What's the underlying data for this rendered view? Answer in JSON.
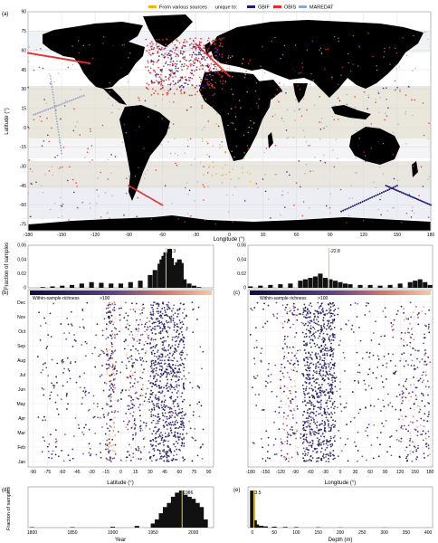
{
  "legend": {
    "various_label": "From various sources",
    "unique_label": "unique to:",
    "gbif_label": "GBIF",
    "obis_label": "OBIS",
    "maredat_label": "MAREDAT",
    "colors": {
      "various": "#f2b21a",
      "gbif": "#1c1c7a",
      "obis": "#e03030",
      "maredat": "#9aa6c8"
    }
  },
  "panel_labels": {
    "a": "(a)",
    "b": "(b)",
    "c": "(c)",
    "d": "(d)",
    "e": "(e)"
  },
  "richness": {
    "label": "Within-sample richness",
    "max_label": ">100"
  },
  "months": [
    "Jan",
    "Feb",
    "Mar",
    "Apr",
    "May",
    "Jun",
    "Jul",
    "Aug",
    "Sep",
    "Oct",
    "Nov",
    "Dec"
  ],
  "chart_data": [
    {
      "id": "a",
      "type": "scatter",
      "title": "",
      "xlabel": "Longitude (°)",
      "ylabel": "Latitude (°)",
      "xlim": [
        -180,
        180
      ],
      "ylim": [
        -80,
        90
      ],
      "xticks": [
        -180,
        -150,
        -120,
        -90,
        -60,
        -30,
        0,
        30,
        60,
        90,
        120,
        150,
        180
      ],
      "yticks": [
        -75,
        -60,
        -45,
        -30,
        -15,
        0,
        15,
        30,
        45,
        60,
        75,
        90
      ],
      "series": [
        {
          "name": "From various sources",
          "color": "#f2b21a"
        },
        {
          "name": "GBIF",
          "color": "#1c1c7a"
        },
        {
          "name": "OBIS",
          "color": "#e03030"
        },
        {
          "name": "MAREDAT",
          "color": "#9aa6c8"
        }
      ],
      "legend_position": "top"
    },
    {
      "id": "b_hist",
      "type": "bar",
      "ylabel": "Fraction of samples",
      "xlim": [
        -95,
        95
      ],
      "ylim": [
        0,
        0.06
      ],
      "yticks": [
        "0",
        "0.02",
        "0.04",
        "0.06"
      ],
      "median": 46.3,
      "median_label": "46.3",
      "x": [
        -80,
        -70,
        -60,
        -50,
        -40,
        -30,
        -20,
        -10,
        0,
        10,
        20,
        30,
        35,
        40,
        42,
        44,
        46,
        48,
        50,
        52,
        54,
        56,
        58,
        60,
        62,
        65,
        70,
        75,
        80
      ],
      "values": [
        0.001,
        0.002,
        0.003,
        0.004,
        0.006,
        0.008,
        0.007,
        0.006,
        0.006,
        0.008,
        0.01,
        0.018,
        0.025,
        0.034,
        0.04,
        0.045,
        0.05,
        0.048,
        0.055,
        0.042,
        0.032,
        0.028,
        0.036,
        0.04,
        0.035,
        0.012,
        0.006,
        0.003,
        0.001
      ]
    },
    {
      "id": "c_hist",
      "type": "bar",
      "xlim": [
        -185,
        185
      ],
      "ylim": [
        0,
        0.06
      ],
      "yticks": [
        "0",
        "0.02",
        "0.04",
        "0.06"
      ],
      "median": -22.8,
      "median_label": "-22.8",
      "x": [
        -180,
        -160,
        -140,
        -120,
        -100,
        -80,
        -70,
        -60,
        -50,
        -40,
        -30,
        -20,
        -10,
        0,
        10,
        20,
        40,
        60,
        80,
        100,
        120,
        140,
        150,
        160,
        170,
        180
      ],
      "values": [
        0.002,
        0.003,
        0.004,
        0.005,
        0.006,
        0.01,
        0.012,
        0.014,
        0.016,
        0.02,
        0.014,
        0.012,
        0.01,
        0.008,
        0.006,
        0.005,
        0.004,
        0.004,
        0.003,
        0.004,
        0.006,
        0.008,
        0.01,
        0.012,
        0.008,
        0.004
      ]
    },
    {
      "id": "b",
      "type": "scatter",
      "xlabel": "Latitude (°)",
      "xlim": [
        -95,
        95
      ],
      "xticks": [
        -90,
        -75,
        -60,
        -45,
        -30,
        -15,
        0,
        15,
        30,
        45,
        60,
        75,
        90
      ],
      "ylim": [
        1,
        12
      ],
      "legend_position": "top-left"
    },
    {
      "id": "c",
      "type": "scatter",
      "xlabel": "Longitude (°)",
      "xlim": [
        -185,
        185
      ],
      "xticks": [
        -180,
        -150,
        -120,
        -90,
        -60,
        -30,
        0,
        30,
        60,
        90,
        120,
        150,
        180
      ],
      "ylim": [
        1,
        12
      ],
      "legend_position": "top-left"
    },
    {
      "id": "d",
      "type": "bar",
      "xlabel": "Year",
      "ylabel": "Fraction of samples",
      "xlim": [
        1795,
        2025
      ],
      "xticks": [
        1800,
        1850,
        1900,
        1950,
        2000
      ],
      "median": 1986,
      "median_label": "1986",
      "x": [
        1800,
        1850,
        1900,
        1930,
        1950,
        1955,
        1960,
        1965,
        1970,
        1975,
        1980,
        1985,
        1990,
        1995,
        2000,
        2005,
        2010,
        2015
      ],
      "values": [
        0.001,
        0.001,
        0.002,
        0.004,
        0.01,
        0.02,
        0.035,
        0.05,
        0.06,
        0.075,
        0.085,
        0.09,
        0.08,
        0.075,
        0.07,
        0.06,
        0.05,
        0.02
      ]
    },
    {
      "id": "e",
      "type": "bar",
      "xlabel": "Depth (m)",
      "xlim": [
        -10,
        410
      ],
      "xticks": [
        0,
        50,
        100,
        150,
        200,
        250,
        300,
        350,
        400
      ],
      "median": 3.5,
      "median_label": "3.5",
      "x": [
        0,
        5,
        10,
        20,
        30,
        50,
        75,
        100,
        150,
        200,
        300,
        400
      ],
      "values": [
        0.6,
        0.12,
        0.05,
        0.03,
        0.02,
        0.015,
        0.01,
        0.008,
        0.005,
        0.003,
        0.002,
        0.001
      ]
    }
  ]
}
